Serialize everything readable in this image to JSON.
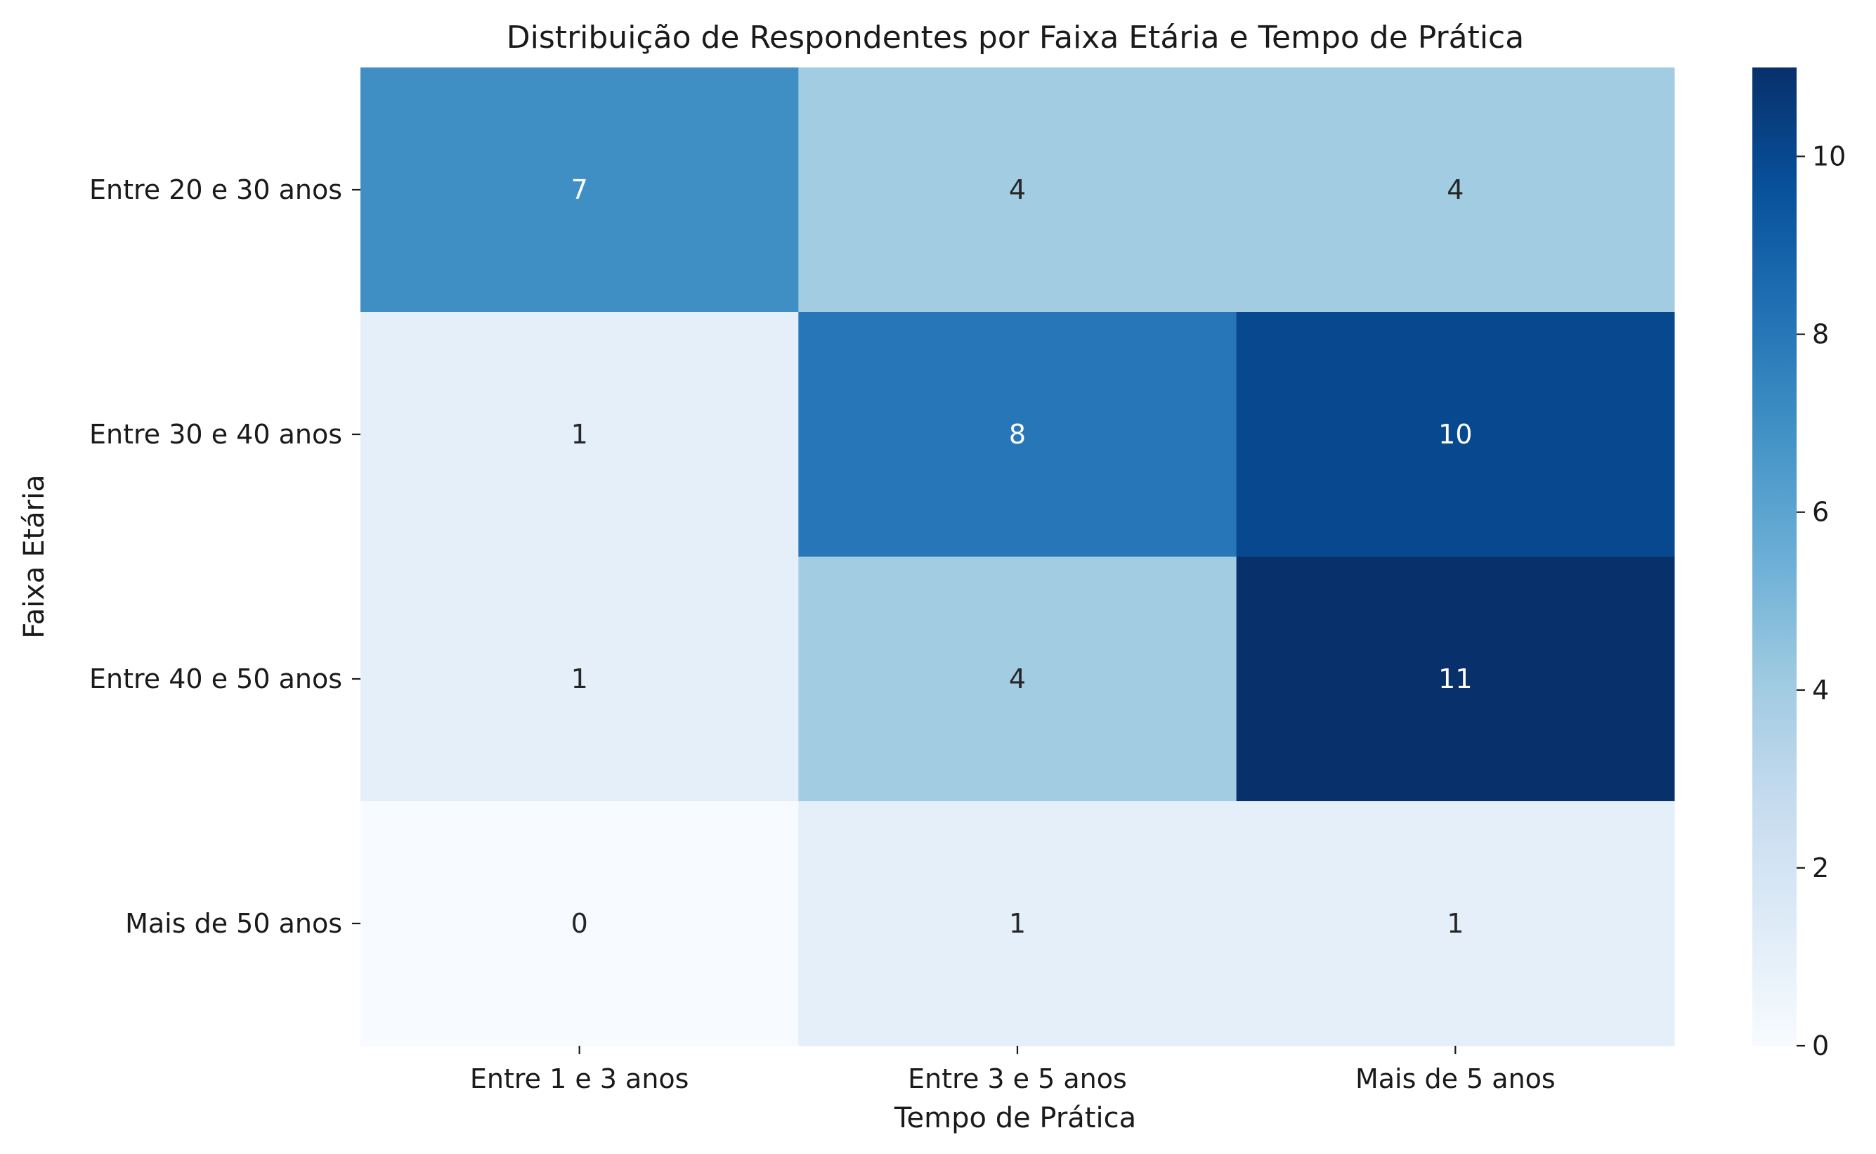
{
  "chart_data": {
    "type": "heatmap",
    "title": "Distribuição de Respondentes por Faixa Etária e Tempo de Prática",
    "xlabel": "Tempo de Prática",
    "ylabel": "Faixa Etária",
    "x_categories": [
      "Entre 1 e 3 anos",
      "Entre 3 e 5 anos",
      "Mais de 5 anos"
    ],
    "y_categories": [
      "Entre 20 e 30 anos",
      "Entre 30 e 40 anos",
      "Entre 40 e 50 anos",
      "Mais de 50 anos"
    ],
    "values": [
      [
        7,
        4,
        4
      ],
      [
        1,
        8,
        10
      ],
      [
        1,
        4,
        11
      ],
      [
        0,
        1,
        1
      ]
    ],
    "colormap": "Blues",
    "vmin": 0,
    "vmax": 11,
    "colorbar_ticks": [
      "0",
      "2",
      "4",
      "6",
      "8",
      "10"
    ],
    "annotated": true
  }
}
